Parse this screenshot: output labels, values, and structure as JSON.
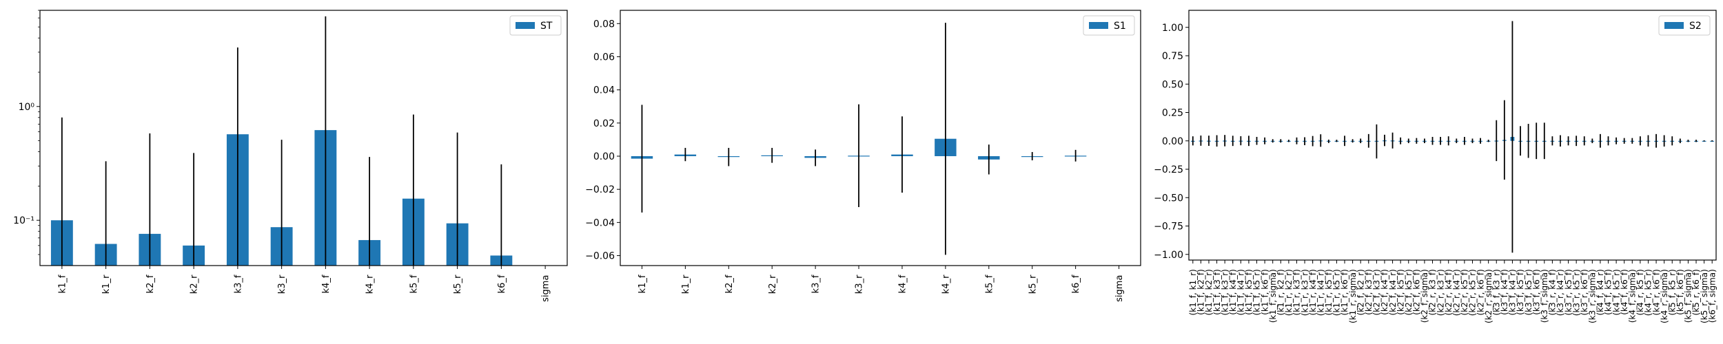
{
  "colors": {
    "bar": "#1f77b4",
    "error": "#000000",
    "axis": "#000000"
  },
  "chart_data": [
    {
      "type": "bar",
      "title": "",
      "xlabel": "",
      "ylabel": "",
      "yscale": "log",
      "ylim": [
        0.04,
        7
      ],
      "yticks": [
        {
          "value": 0.1,
          "label": "10⁻¹"
        },
        {
          "value": 1,
          "label": "10⁰"
        }
      ],
      "legend": {
        "position": "top-right",
        "entries": [
          "ST"
        ]
      },
      "grid": false,
      "categories": [
        "k1_f",
        "k1_r",
        "k2_f",
        "k2_r",
        "k3_f",
        "k3_r",
        "k4_f",
        "k4_r",
        "k5_f",
        "k5_r",
        "k6_f",
        "sigma"
      ],
      "series": [
        {
          "name": "ST",
          "values": [
            0.1,
            0.062,
            0.076,
            0.06,
            0.57,
            0.087,
            0.62,
            0.067,
            0.155,
            0.094,
            0.049,
            null
          ],
          "error_low": [
            0.04,
            0.04,
            0.04,
            0.04,
            0.04,
            0.04,
            0.04,
            0.04,
            0.04,
            0.04,
            0.04,
            null
          ],
          "error_high": [
            0.8,
            0.33,
            0.58,
            0.39,
            3.3,
            0.51,
            6.2,
            0.36,
            0.85,
            0.59,
            0.31,
            null
          ]
        }
      ]
    },
    {
      "type": "bar",
      "title": "",
      "xlabel": "",
      "ylabel": "",
      "ylim": [
        -0.066,
        0.088
      ],
      "yticks": [
        {
          "value": -0.06,
          "label": "−0.06"
        },
        {
          "value": -0.04,
          "label": "−0.04"
        },
        {
          "value": -0.02,
          "label": "−0.02"
        },
        {
          "value": 0,
          "label": "0.00"
        },
        {
          "value": 0.02,
          "label": "0.02"
        },
        {
          "value": 0.04,
          "label": "0.04"
        },
        {
          "value": 0.06,
          "label": "0.06"
        },
        {
          "value": 0.08,
          "label": "0.08"
        }
      ],
      "legend": {
        "position": "top-right",
        "entries": [
          "S1"
        ]
      },
      "grid": false,
      "categories": [
        "k1_f",
        "k1_r",
        "k2_f",
        "k2_r",
        "k3_f",
        "k3_r",
        "k4_f",
        "k4_r",
        "k5_f",
        "k5_r",
        "k6_f",
        "sigma"
      ],
      "series": [
        {
          "name": "S1",
          "values": [
            -0.0015,
            0.001,
            -0.0005,
            0.0005,
            -0.001,
            0.0003,
            0.001,
            0.0105,
            -0.002,
            0.0,
            0.0003,
            null
          ],
          "error": [
            0.0325,
            0.004,
            0.0055,
            0.0045,
            0.005,
            0.031,
            0.023,
            0.07,
            0.009,
            0.0025,
            0.0035,
            null
          ]
        }
      ]
    },
    {
      "type": "bar",
      "title": "",
      "xlabel": "",
      "ylabel": "",
      "ylim": [
        -1.05,
        1.15
      ],
      "yticks": [
        {
          "value": -1.0,
          "label": "−1.00"
        },
        {
          "value": -0.75,
          "label": "−0.75"
        },
        {
          "value": -0.5,
          "label": "−0.50"
        },
        {
          "value": -0.25,
          "label": "−0.25"
        },
        {
          "value": 0,
          "label": "0.00"
        },
        {
          "value": 0.25,
          "label": "0.25"
        },
        {
          "value": 0.5,
          "label": "0.50"
        },
        {
          "value": 0.75,
          "label": "0.75"
        },
        {
          "value": 1.0,
          "label": "1.00"
        }
      ],
      "legend": {
        "position": "top-right",
        "entries": [
          "S2"
        ]
      },
      "grid": false,
      "categories": [
        "(k1_f, k1_r)",
        "(k1_f, k2_f)",
        "(k1_f, k2_r)",
        "(k1_f, k3_f)",
        "(k1_f, k3_r)",
        "(k1_f, k4_f)",
        "(k1_f, k4_r)",
        "(k1_f, k5_f)",
        "(k1_f, k5_r)",
        "(k1_f, k6_f)",
        "(k1_f, sigma)",
        "(k1_r, k2_f)",
        "(k1_r, k2_r)",
        "(k1_r, k3_f)",
        "(k1_r, k3_r)",
        "(k1_r, k4_f)",
        "(k1_r, k4_r)",
        "(k1_r, k5_f)",
        "(k1_r, k5_r)",
        "(k1_r, k6_f)",
        "(k1_r, sigma)",
        "(k2_f, k2_r)",
        "(k2_f, k3_f)",
        "(k2_f, k3_r)",
        "(k2_f, k4_f)",
        "(k2_f, k4_r)",
        "(k2_f, k5_f)",
        "(k2_f, k5_r)",
        "(k2_f, k6_f)",
        "(k2_f, sigma)",
        "(k2_r, k3_f)",
        "(k2_r, k3_r)",
        "(k2_r, k4_f)",
        "(k2_r, k4_r)",
        "(k2_r, k5_f)",
        "(k2_r, k5_r)",
        "(k2_r, k6_f)",
        "(k2_r, sigma)",
        "(k3_f, k3_r)",
        "(k3_f, k4_f)",
        "(k3_f, k4_r)",
        "(k3_f, k5_f)",
        "(k3_f, k5_r)",
        "(k3_f, k6_f)",
        "(k3_f, sigma)",
        "(k3_r, k4_f)",
        "(k3_r, k4_r)",
        "(k3_r, k5_f)",
        "(k3_r, k5_r)",
        "(k3_r, k6_f)",
        "(k3_r, sigma)",
        "(k4_f, k4_r)",
        "(k4_f, k5_f)",
        "(k4_f, k5_r)",
        "(k4_f, k6_f)",
        "(k4_f, sigma)",
        "(k4_r, k5_f)",
        "(k4_r, k5_r)",
        "(k4_r, k6_f)",
        "(k4_r, sigma)",
        "(k5_f, k5_r)",
        "(k5_f, k6_f)",
        "(k5_f, sigma)",
        "(k5_r, k6_f)",
        "(k5_r, sigma)",
        "(k6_f, sigma)"
      ],
      "series": [
        {
          "name": "S2",
          "values": [
            0.0,
            0.002,
            0.001,
            0.0,
            0.002,
            0.0,
            0.001,
            0.0,
            0.0,
            0.0,
            0.0,
            0.0,
            0.0,
            0.0,
            -0.003,
            -0.002,
            0.003,
            -0.004,
            0.0,
            0.0,
            0.0,
            0.0,
            0.0,
            -0.005,
            0.004,
            0.003,
            0.0,
            0.0,
            0.0,
            0.0,
            0.0,
            0.0,
            0.0,
            0.0,
            0.0,
            0.0,
            0.0,
            0.0,
            0.002,
            0.008,
            0.035,
            0.0,
            0.0,
            0.0,
            0.0,
            0.0,
            0.0,
            0.0,
            0.0,
            0.0,
            0.0,
            0.0,
            0.0,
            0.0,
            0.0,
            0.0,
            0.0,
            0.0,
            0.0,
            0.0,
            0.0,
            0.0,
            0.0,
            0.0,
            0.0,
            0.0
          ],
          "error": [
            0.04,
            0.045,
            0.045,
            0.05,
            0.05,
            0.045,
            0.04,
            0.045,
            0.035,
            0.03,
            0.015,
            0.015,
            0.01,
            0.03,
            0.035,
            0.045,
            0.055,
            0.015,
            0.01,
            0.045,
            0.015,
            0.02,
            0.06,
            0.15,
            0.05,
            0.07,
            0.03,
            0.02,
            0.025,
            0.02,
            0.035,
            0.035,
            0.04,
            0.02,
            0.035,
            0.02,
            0.025,
            0.01,
            0.18,
            0.35,
            1.02,
            0.13,
            0.15,
            0.16,
            0.16,
            0.04,
            0.05,
            0.04,
            0.045,
            0.04,
            0.02,
            0.06,
            0.04,
            0.03,
            0.025,
            0.025,
            0.04,
            0.05,
            0.06,
            0.05,
            0.04,
            0.02,
            0.01,
            0.01,
            0.005,
            0.005
          ]
        }
      ]
    }
  ]
}
